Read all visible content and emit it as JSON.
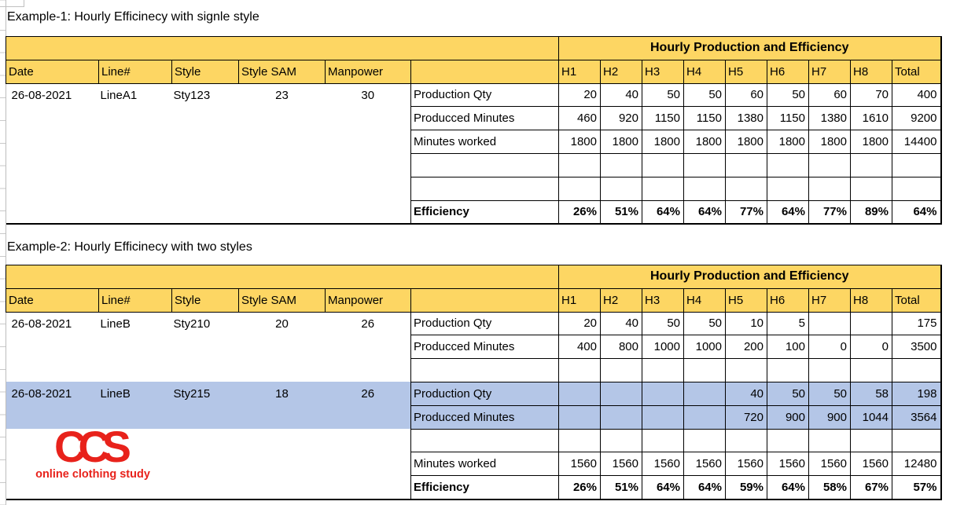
{
  "colors": {
    "header_yellow": "#FDD663",
    "highlight_blue": "#B4C6E7",
    "grid_line": "#000000",
    "logo_red": "#E8221B"
  },
  "example1": {
    "title": "Example-1: Hourly Efficinecy with signle style",
    "table": {
      "group_header": "Hourly Production and Efficiency",
      "columns": [
        "Date",
        "Line#",
        "Style",
        "Style SAM",
        "Manpower",
        "",
        "H1",
        "H2",
        "H3",
        "H4",
        "H5",
        "H6",
        "H7",
        "H8",
        "Total"
      ],
      "rows": [
        {
          "info": [
            "26-08-2021",
            "LineA1",
            "Sty123",
            "23",
            "30"
          ],
          "label": "Production Qty",
          "values": [
            "20",
            "40",
            "50",
            "50",
            "60",
            "50",
            "60",
            "70",
            "400"
          ]
        },
        {
          "label": "Producced Minutes",
          "values": [
            "460",
            "920",
            "1150",
            "1150",
            "1380",
            "1150",
            "1380",
            "1610",
            "9200"
          ]
        },
        {
          "label": "Minutes worked",
          "values": [
            "1800",
            "1800",
            "1800",
            "1800",
            "1800",
            "1800",
            "1800",
            "1800",
            "14400"
          ]
        },
        {
          "label": "",
          "values": [
            "",
            "",
            "",
            "",
            "",
            "",
            "",
            "",
            ""
          ]
        },
        {
          "label": "",
          "values": [
            "",
            "",
            "",
            "",
            "",
            "",
            "",
            "",
            ""
          ]
        },
        {
          "label": "Efficiency",
          "bold": true,
          "values": [
            "26%",
            "51%",
            "64%",
            "64%",
            "77%",
            "64%",
            "77%",
            "89%",
            "64%"
          ]
        }
      ]
    }
  },
  "example2": {
    "title": "Example-2: Hourly Efficinecy with two styles",
    "table": {
      "group_header": "Hourly Production and Efficiency",
      "columns": [
        "Date",
        "Line#",
        "Style",
        "Style SAM",
        "Manpower",
        "",
        "H1",
        "H2",
        "H3",
        "H4",
        "H5",
        "H6",
        "H7",
        "H8",
        "Total"
      ],
      "rows": [
        {
          "info": [
            "26-08-2021",
            "LineB",
            "Sty210",
            "20",
            "26"
          ],
          "label": "Production Qty",
          "values": [
            "20",
            "40",
            "50",
            "50",
            "10",
            "5",
            "",
            "",
            "175"
          ]
        },
        {
          "label": "Producced Minutes",
          "values": [
            "400",
            "800",
            "1000",
            "1000",
            "200",
            "100",
            "0",
            "0",
            "3500"
          ]
        },
        {
          "label": "",
          "values": [
            "",
            "",
            "",
            "",
            "",
            "",
            "",
            "",
            ""
          ]
        },
        {
          "info": [
            "26-08-2021",
            "LineB",
            "Sty215",
            "18",
            "26"
          ],
          "highlight": true,
          "label": "Production Qty",
          "values": [
            "",
            "",
            "",
            "",
            "40",
            "50",
            "50",
            "58",
            "198"
          ]
        },
        {
          "highlight": true,
          "label": "Producced Minutes",
          "values": [
            "",
            "",
            "",
            "",
            "720",
            "900",
            "900",
            "1044",
            "3564"
          ]
        },
        {
          "label": "",
          "values": [
            "",
            "",
            "",
            "",
            "",
            "",
            "",
            "",
            ""
          ]
        },
        {
          "label": "Minutes worked",
          "values": [
            "1560",
            "1560",
            "1560",
            "1560",
            "1560",
            "1560",
            "1560",
            "1560",
            "12480"
          ]
        },
        {
          "label": "Efficiency",
          "bold": true,
          "values": [
            "26%",
            "51%",
            "64%",
            "64%",
            "59%",
            "64%",
            "58%",
            "67%",
            "57%"
          ]
        }
      ]
    }
  },
  "logo": {
    "acronym": "CCS",
    "tagline": "online clothing study"
  }
}
